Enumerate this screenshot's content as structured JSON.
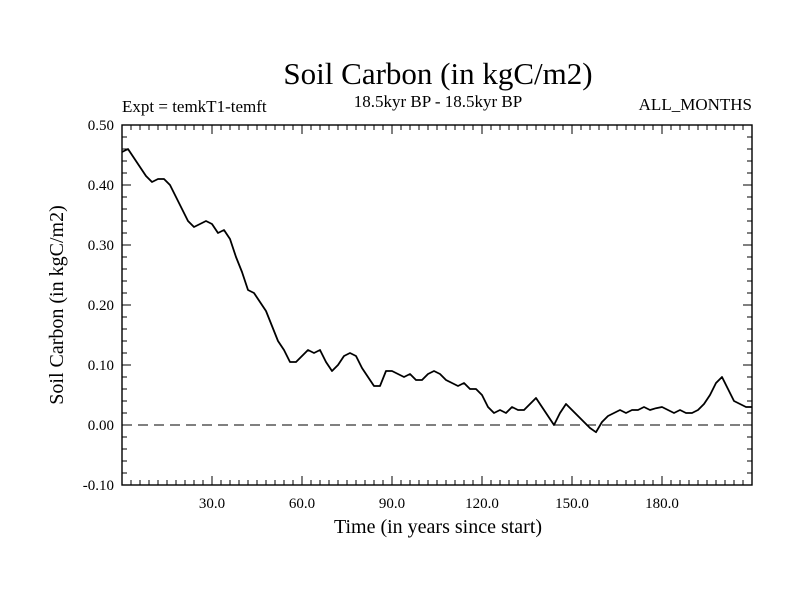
{
  "chart_data": {
    "type": "line",
    "title": "Soil Carbon (in kgC/m2)",
    "subtitle_left": "Expt = temkT1-temft",
    "subtitle_center": "18.5kyr BP - 18.5kyr BP",
    "subtitle_right": "ALL_MONTHS",
    "xlabel": "Time (in years since start)",
    "ylabel": "Soil Carbon (in kgC/m2)",
    "xlim": [
      0,
      210
    ],
    "ylim": [
      -0.1,
      0.5
    ],
    "x_ticks": [
      30,
      60,
      90,
      120,
      150,
      180
    ],
    "x_tick_labels": [
      "30.0",
      "60.0",
      "90.0",
      "120.0",
      "150.0",
      "180.0"
    ],
    "y_ticks": [
      -0.1,
      0.0,
      0.1,
      0.2,
      0.3,
      0.4,
      0.5
    ],
    "y_tick_labels": [
      "-0.10",
      "0.00",
      "0.10",
      "0.20",
      "0.30",
      "0.40",
      "0.50"
    ],
    "reference_line": {
      "y": 0.0,
      "style": "dashed"
    },
    "series": [
      {
        "name": "Soil Carbon",
        "x": [
          0,
          2,
          4,
          6,
          8,
          10,
          12,
          14,
          16,
          18,
          20,
          22,
          24,
          26,
          28,
          30,
          32,
          34,
          36,
          38,
          40,
          42,
          44,
          46,
          48,
          50,
          52,
          54,
          56,
          58,
          60,
          62,
          64,
          66,
          68,
          70,
          72,
          74,
          76,
          78,
          80,
          82,
          84,
          86,
          88,
          90,
          92,
          94,
          96,
          98,
          100,
          102,
          104,
          106,
          108,
          110,
          112,
          114,
          116,
          118,
          120,
          122,
          124,
          126,
          128,
          130,
          132,
          134,
          136,
          138,
          140,
          142,
          144,
          146,
          148,
          150,
          152,
          154,
          156,
          158,
          160,
          162,
          164,
          166,
          168,
          170,
          172,
          174,
          176,
          178,
          180,
          182,
          184,
          186,
          188,
          190,
          192,
          194,
          196,
          198,
          200,
          202,
          204,
          206,
          208,
          210
        ],
        "y": [
          0.455,
          0.46,
          0.445,
          0.43,
          0.415,
          0.405,
          0.41,
          0.41,
          0.4,
          0.38,
          0.36,
          0.34,
          0.33,
          0.335,
          0.34,
          0.335,
          0.32,
          0.325,
          0.31,
          0.28,
          0.255,
          0.225,
          0.22,
          0.205,
          0.19,
          0.165,
          0.14,
          0.125,
          0.105,
          0.105,
          0.115,
          0.125,
          0.12,
          0.125,
          0.105,
          0.09,
          0.1,
          0.115,
          0.12,
          0.115,
          0.095,
          0.08,
          0.065,
          0.065,
          0.09,
          0.09,
          0.085,
          0.08,
          0.085,
          0.075,
          0.075,
          0.085,
          0.09,
          0.085,
          0.075,
          0.07,
          0.065,
          0.07,
          0.06,
          0.06,
          0.05,
          0.03,
          0.02,
          0.025,
          0.02,
          0.03,
          0.025,
          0.025,
          0.035,
          0.045,
          0.03,
          0.015,
          0.0,
          0.02,
          0.035,
          0.025,
          0.015,
          0.005,
          -0.005,
          -0.012,
          0.005,
          0.015,
          0.02,
          0.025,
          0.02,
          0.025,
          0.025,
          0.03,
          0.025,
          0.028,
          0.03,
          0.025,
          0.02,
          0.025,
          0.02,
          0.02,
          0.025,
          0.035,
          0.05,
          0.07,
          0.08,
          0.06,
          0.04,
          0.035,
          0.03,
          0.03
        ]
      }
    ]
  }
}
